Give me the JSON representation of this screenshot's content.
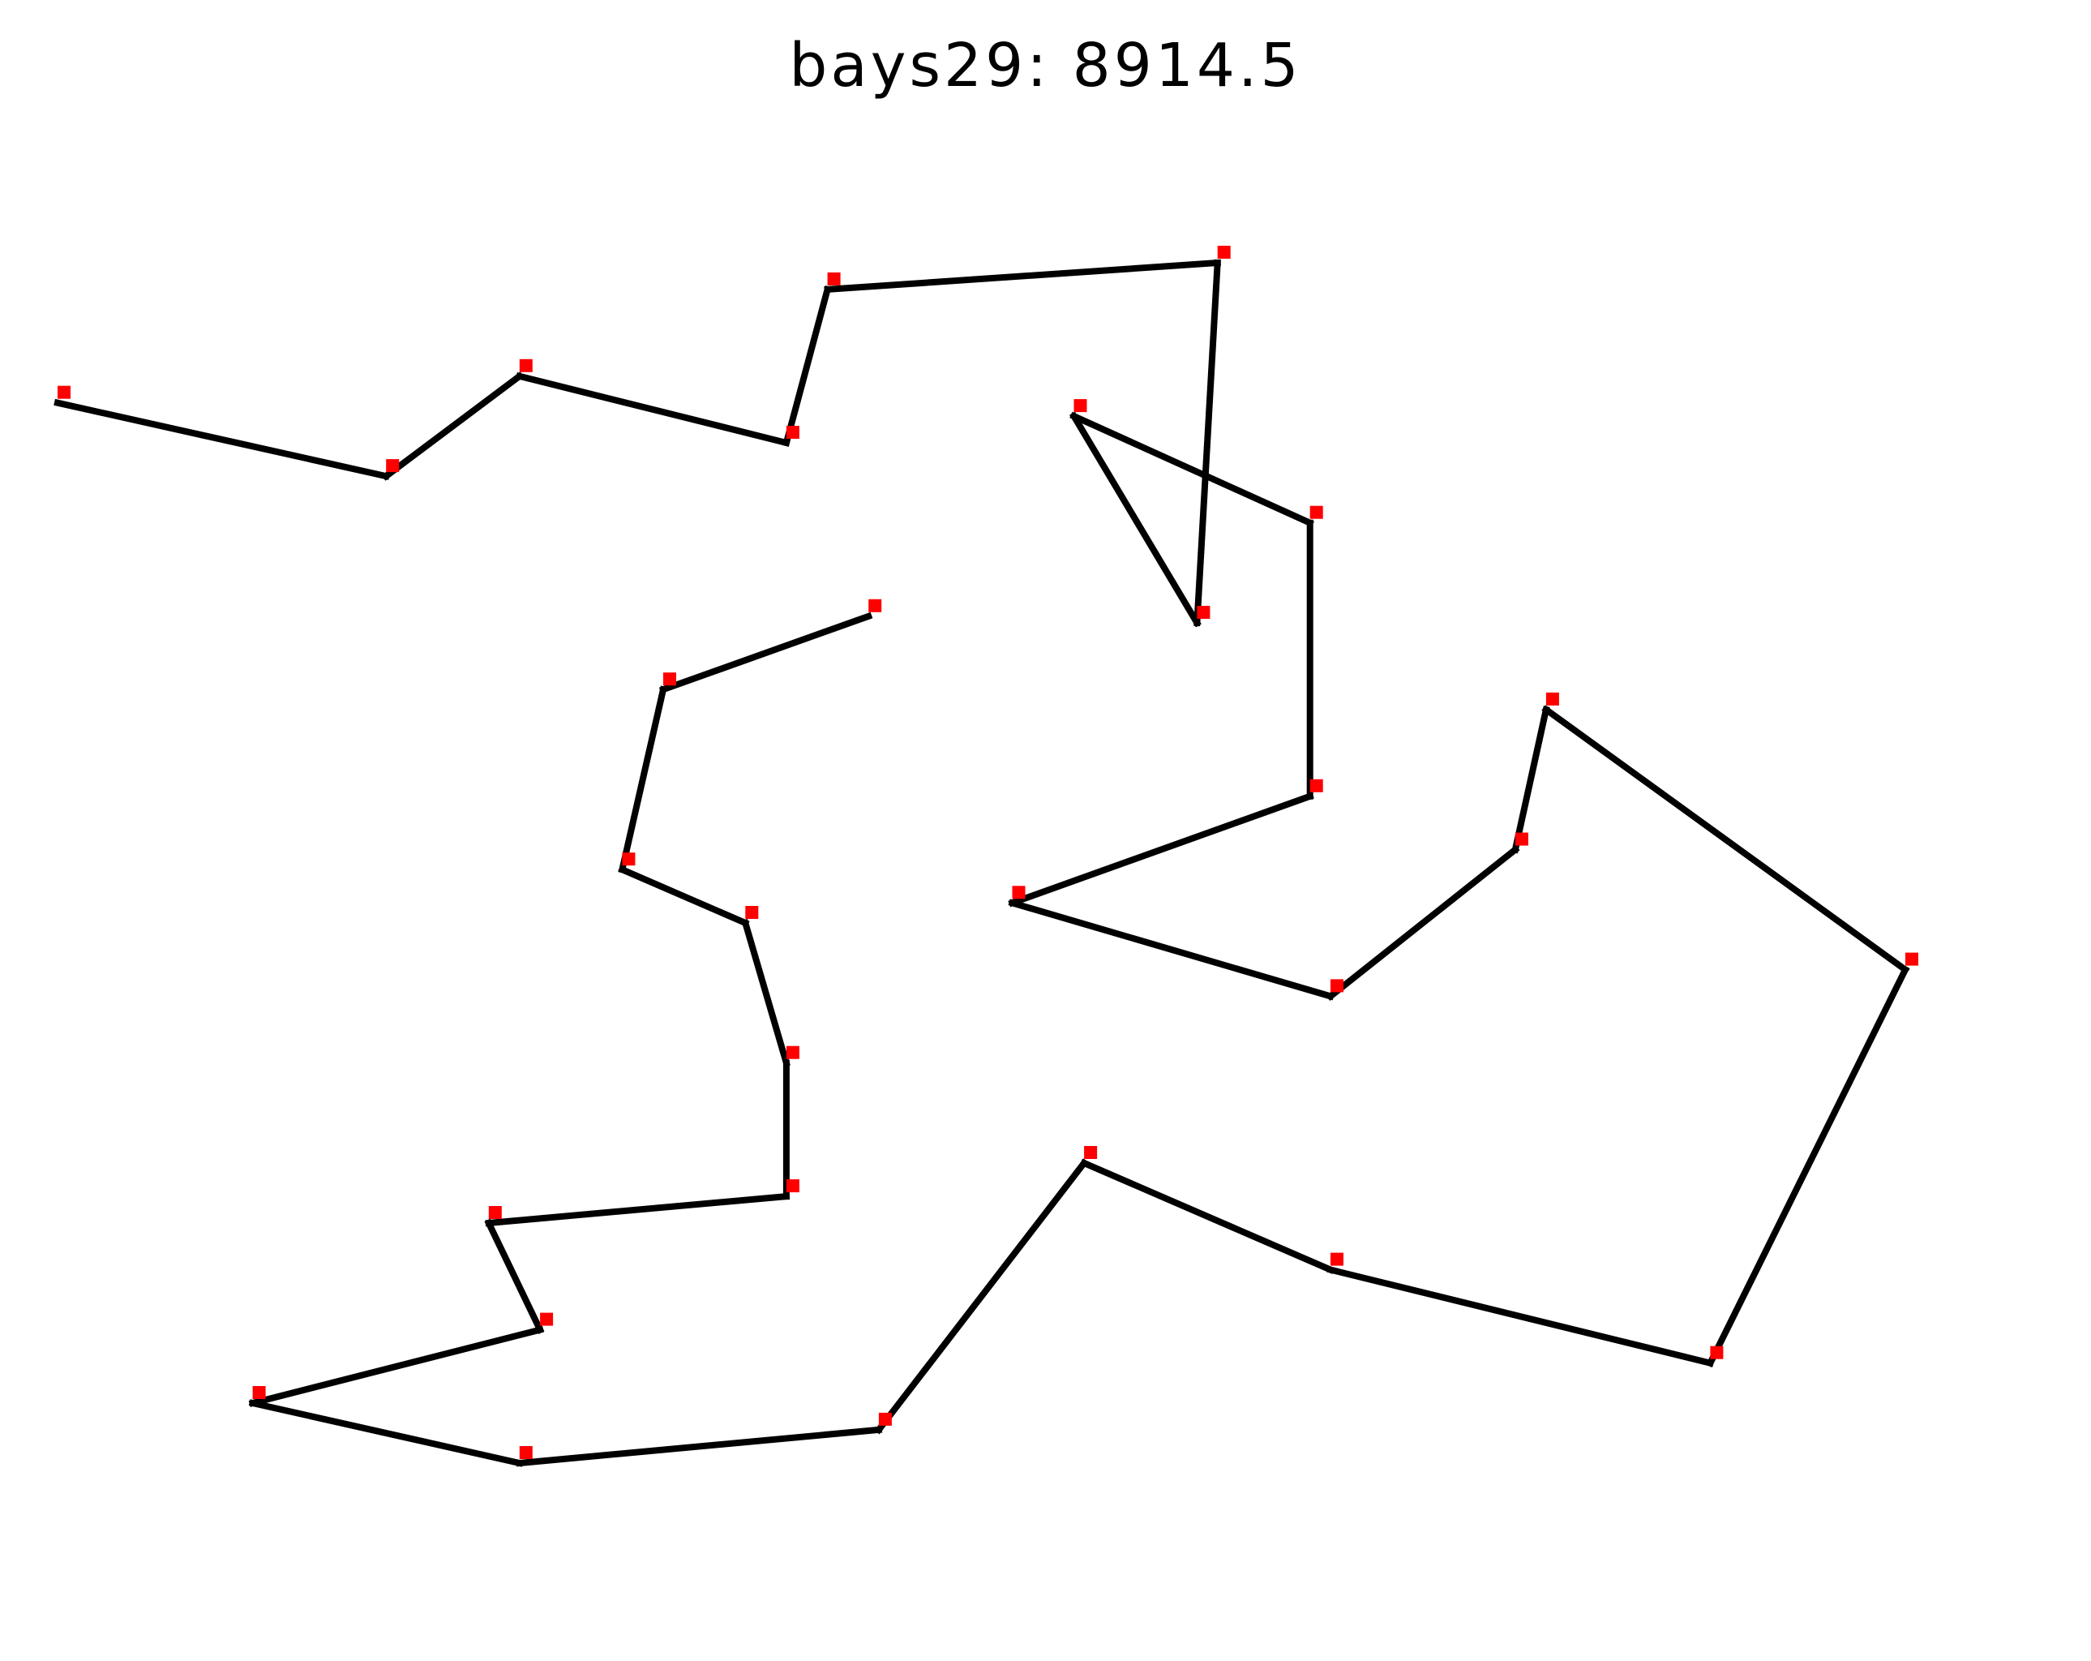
{
  "chart_data": {
    "type": "line",
    "title": "bays29: 8914.5",
    "xlabel": "",
    "ylabel": "",
    "grid": false,
    "axes_visible": false,
    "xlim": [
      0,
      2200
    ],
    "ylim": [
      0,
      2200
    ],
    "series": [
      {
        "marker": "square",
        "marker_color": "#ff0000",
        "line_color": "#000000",
        "points": [
          {
            "x": 1150,
            "y": 1760
          },
          {
            "x": 630,
            "y": 1660
          },
          {
            "x": 40,
            "y": 2090
          },
          {
            "x": 750,
            "y": 1100
          },
          {
            "x": 750,
            "y": 2030
          },
          {
            "x": 1030,
            "y": 2070
          },
          {
            "x": 1650,
            "y": 650
          },
          {
            "x": 1490,
            "y": 1630
          },
          {
            "x": 790,
            "y": 2260
          },
          {
            "x": 710,
            "y": 1310
          },
          {
            "x": 840,
            "y": 550
          },
          {
            "x": 1170,
            "y": 2300
          },
          {
            "x": 970,
            "y": 1340
          },
          {
            "x": 510,
            "y": 700
          },
          {
            "x": 750,
            "y": 900
          },
          {
            "x": 1280,
            "y": 1200
          },
          {
            "x": 230,
            "y": 590
          },
          {
            "x": 460,
            "y": 860
          },
          {
            "x": 1040,
            "y": 950
          },
          {
            "x": 590,
            "y": 1390
          },
          {
            "x": 830,
            "y": 1770
          },
          {
            "x": 490,
            "y": 500
          },
          {
            "x": 1840,
            "y": 1240
          },
          {
            "x": 1260,
            "y": 1500
          },
          {
            "x": 1280,
            "y": 790
          },
          {
            "x": 490,
            "y": 2130
          },
          {
            "x": 1460,
            "y": 1420
          },
          {
            "x": 1260,
            "y": 1910
          },
          {
            "x": 360,
            "y": 1980
          }
        ]
      }
    ],
    "tour": [
      20,
      1,
      19,
      9,
      3,
      14,
      17,
      13,
      16,
      21,
      10,
      18,
      24,
      6,
      22,
      7,
      26,
      15,
      12,
      23,
      27,
      5,
      0,
      11,
      8,
      4,
      25,
      28,
      2
    ]
  }
}
